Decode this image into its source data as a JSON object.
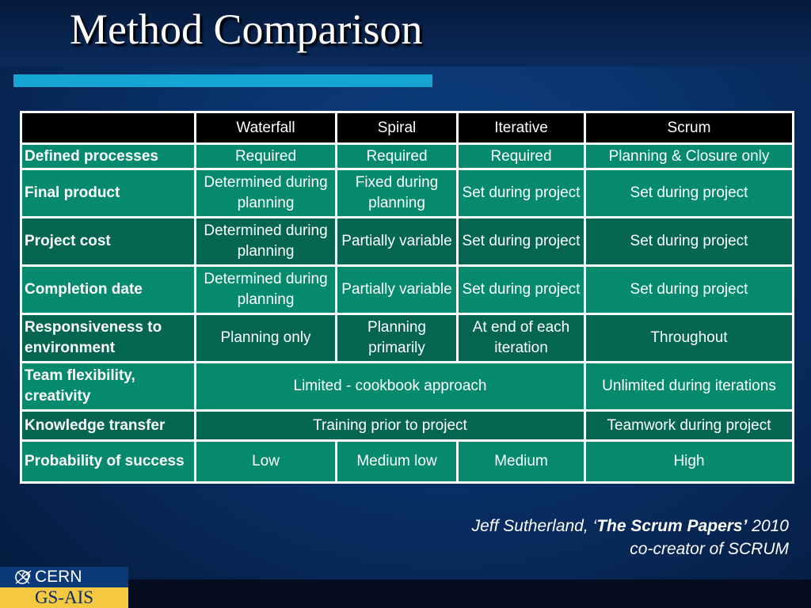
{
  "slide": {
    "title": "Method Comparison"
  },
  "table": {
    "corner": "",
    "columns": [
      "Waterfall",
      "Spiral",
      "Iterative",
      "Scrum"
    ],
    "rows": [
      {
        "label": "Defined processes",
        "cells": [
          "Required",
          "Required",
          "Required",
          "Planning & Closure only"
        ]
      },
      {
        "label": "Final product",
        "cells": [
          "Determined during planning",
          "Fixed during planning",
          "Set during project",
          "Set during project"
        ]
      },
      {
        "label": "Project cost",
        "cells": [
          "Determined during planning",
          "Partially variable",
          "Set during project",
          "Set during project"
        ]
      },
      {
        "label": "Completion date",
        "cells": [
          "Determined during planning",
          "Partially variable",
          "Set during project",
          "Set during project"
        ]
      },
      {
        "label": "Responsiveness to environment",
        "cells": [
          "Planning only",
          "Planning primarily",
          "At end of each iteration",
          "Throughout"
        ]
      },
      {
        "label": "Team flexibility, creativity",
        "cells": [
          "Limited - cookbook approach",
          "Unlimited during iterations"
        ]
      },
      {
        "label": "Knowledge transfer",
        "cells": [
          "Training prior to project",
          "Teamwork during project"
        ]
      },
      {
        "label": "Probability of success",
        "cells": [
          "Low",
          "Medium low",
          "Medium",
          "High"
        ]
      }
    ]
  },
  "attribution": {
    "author": "Jeff Sutherland, ‘",
    "work": "The Scrum Papers’",
    "year": " 2010",
    "role": "co-creator of SCRUM"
  },
  "footer": {
    "org": "CERN",
    "group": "GS-AIS",
    "logo_icon": "cern-logo-icon"
  },
  "colors": {
    "background": "#0a3570",
    "accent_bar": "#16a4d4",
    "header_row": "#000000",
    "row_light": "#058a6e",
    "row_dark": "#046651",
    "footer_yellow": "#f5c842"
  }
}
